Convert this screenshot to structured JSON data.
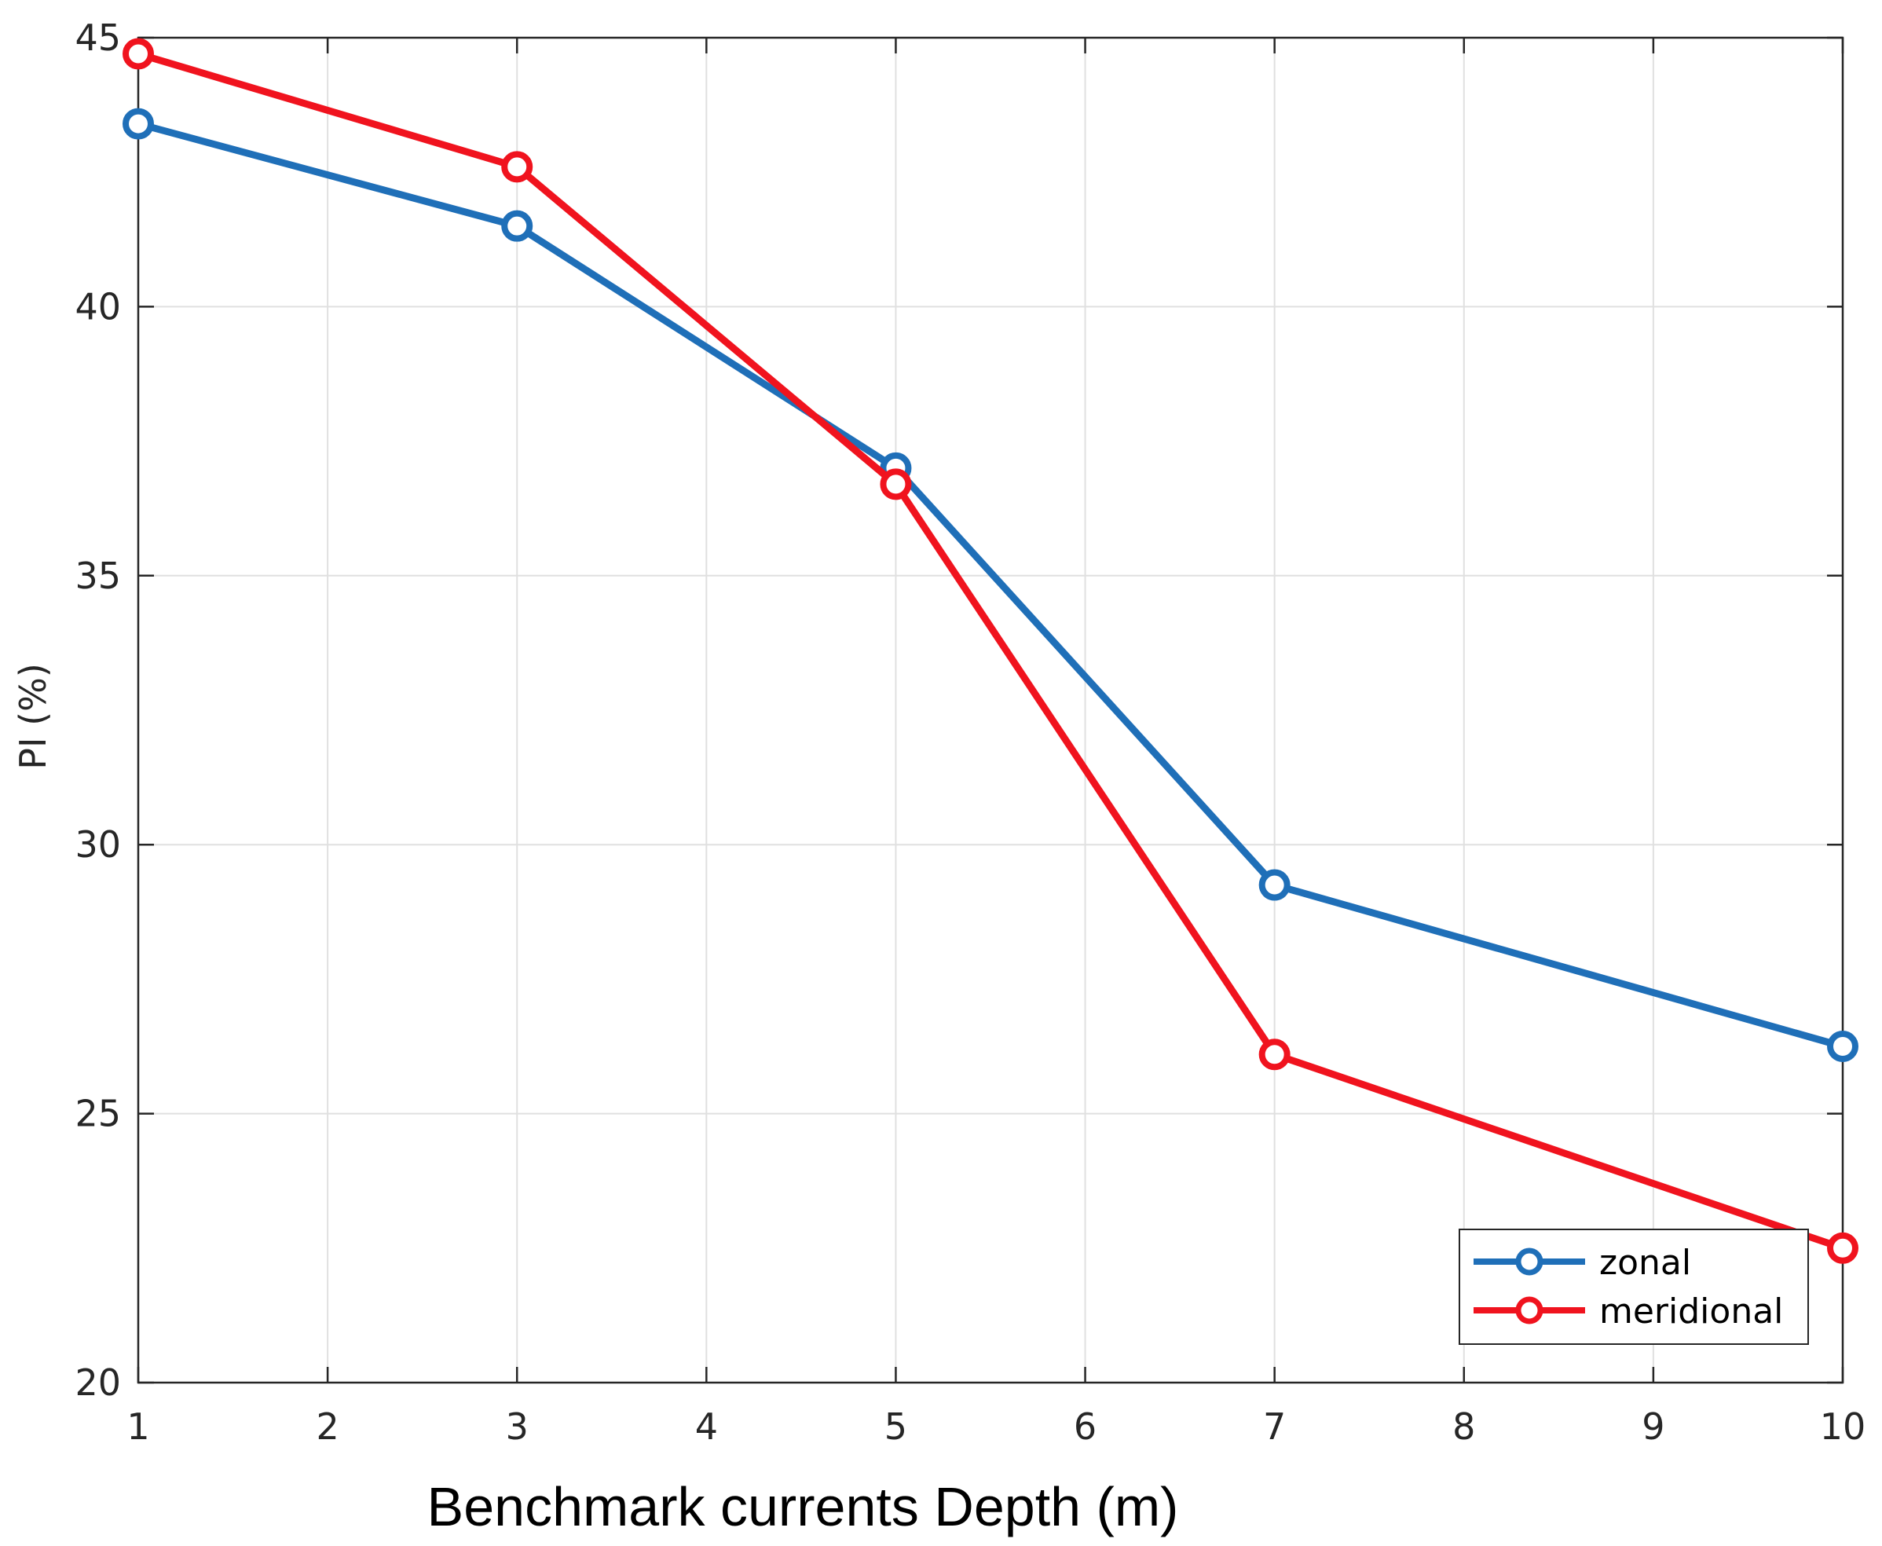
{
  "chart_data": {
    "type": "line",
    "title": "",
    "xlabel": "Benchmark currents Depth (m)",
    "ylabel": "PI (%)",
    "xlim": [
      1,
      10
    ],
    "ylim": [
      20,
      45
    ],
    "x_ticks": [
      1,
      2,
      3,
      4,
      5,
      6,
      7,
      8,
      9,
      10
    ],
    "y_ticks": [
      20,
      25,
      30,
      35,
      40,
      45
    ],
    "grid": true,
    "legend_position": "bottom-right",
    "series": [
      {
        "name": "zonal",
        "color": "#1f6fb8",
        "marker": "circle",
        "x": [
          1,
          3,
          5,
          7,
          10
        ],
        "values": [
          43.4,
          41.5,
          37.0,
          29.25,
          26.25
        ]
      },
      {
        "name": "meridional",
        "color": "#f0131e",
        "marker": "circle",
        "x": [
          1,
          3,
          5,
          7,
          10
        ],
        "values": [
          44.7,
          42.6,
          36.7,
          26.1,
          22.5
        ]
      }
    ]
  }
}
